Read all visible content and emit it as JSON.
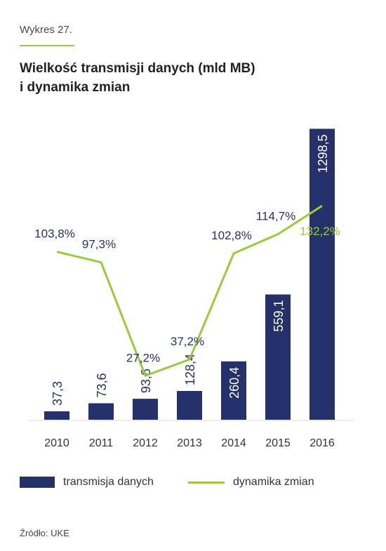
{
  "header": {
    "kicker": "Wykres 27.",
    "title_line1": "Wielkość transmisji danych (mld MB)",
    "title_line2": "i dynamika zmian"
  },
  "chart_data": {
    "type": "bar",
    "categories": [
      "2010",
      "2011",
      "2012",
      "2013",
      "2014",
      "2015",
      "2016"
    ],
    "series": [
      {
        "name": "transmisja danych",
        "type": "bar",
        "color": "#25316b",
        "values": [
          37.3,
          73.6,
          93.6,
          128.4,
          260.4,
          559.1,
          1298.5
        ],
        "labels": [
          "37,3",
          "73,6",
          "93,6",
          "128,4",
          "260,4",
          "559,1",
          "1298,5"
        ]
      },
      {
        "name": "dynamika zmian",
        "type": "line",
        "color": "#9acb3c",
        "values": [
          103.8,
          97.3,
          27.2,
          37.2,
          102.8,
          114.7,
          132.2
        ],
        "labels": [
          "103,8%",
          "97,3%",
          "27,2%",
          "37,2%",
          "102,8%",
          "114,7%",
          "132,2%"
        ]
      }
    ],
    "ylim": [
      0,
      1300
    ],
    "y2lim": [
      0,
      180
    ],
    "grid": false,
    "legend": "bottom"
  },
  "source": "Źródło: UKE"
}
